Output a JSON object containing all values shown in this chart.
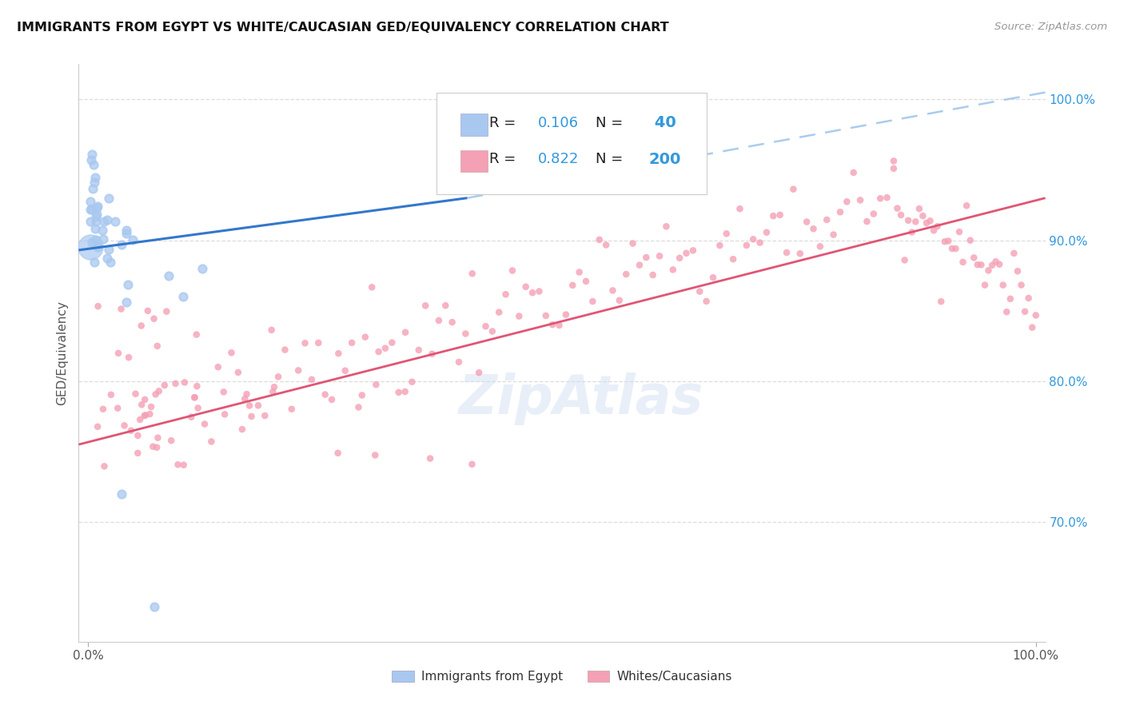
{
  "title": "IMMIGRANTS FROM EGYPT VS WHITE/CAUCASIAN GED/EQUIVALENCY CORRELATION CHART",
  "source": "Source: ZipAtlas.com",
  "ylabel": "GED/Equivalency",
  "legend_bottom": [
    "Immigrants from Egypt",
    "Whites/Caucasians"
  ],
  "r_egypt": 0.106,
  "n_egypt": 40,
  "r_white": 0.822,
  "n_white": 200,
  "color_egypt": "#a8c8f0",
  "color_white": "#f4a0b5",
  "color_blue_text": "#3399dd",
  "ytick_labels": [
    "70.0%",
    "80.0%",
    "90.0%",
    "100.0%"
  ],
  "ytick_values": [
    0.7,
    0.8,
    0.9,
    1.0
  ],
  "ymin": 0.615,
  "ymax": 1.025,
  "xmin": -0.01,
  "xmax": 1.01,
  "blue_line_x0": -0.01,
  "blue_line_x1": 0.4,
  "blue_line_y0": 0.893,
  "blue_line_y1": 0.93,
  "dash_line_x0": 0.4,
  "dash_line_x1": 1.01,
  "dash_line_y0": 0.93,
  "dash_line_y1": 1.005,
  "pink_line_x0": -0.01,
  "pink_line_x1": 1.01,
  "pink_line_y0": 0.755,
  "pink_line_y1": 0.93,
  "watermark_text": "ZipAtlas"
}
